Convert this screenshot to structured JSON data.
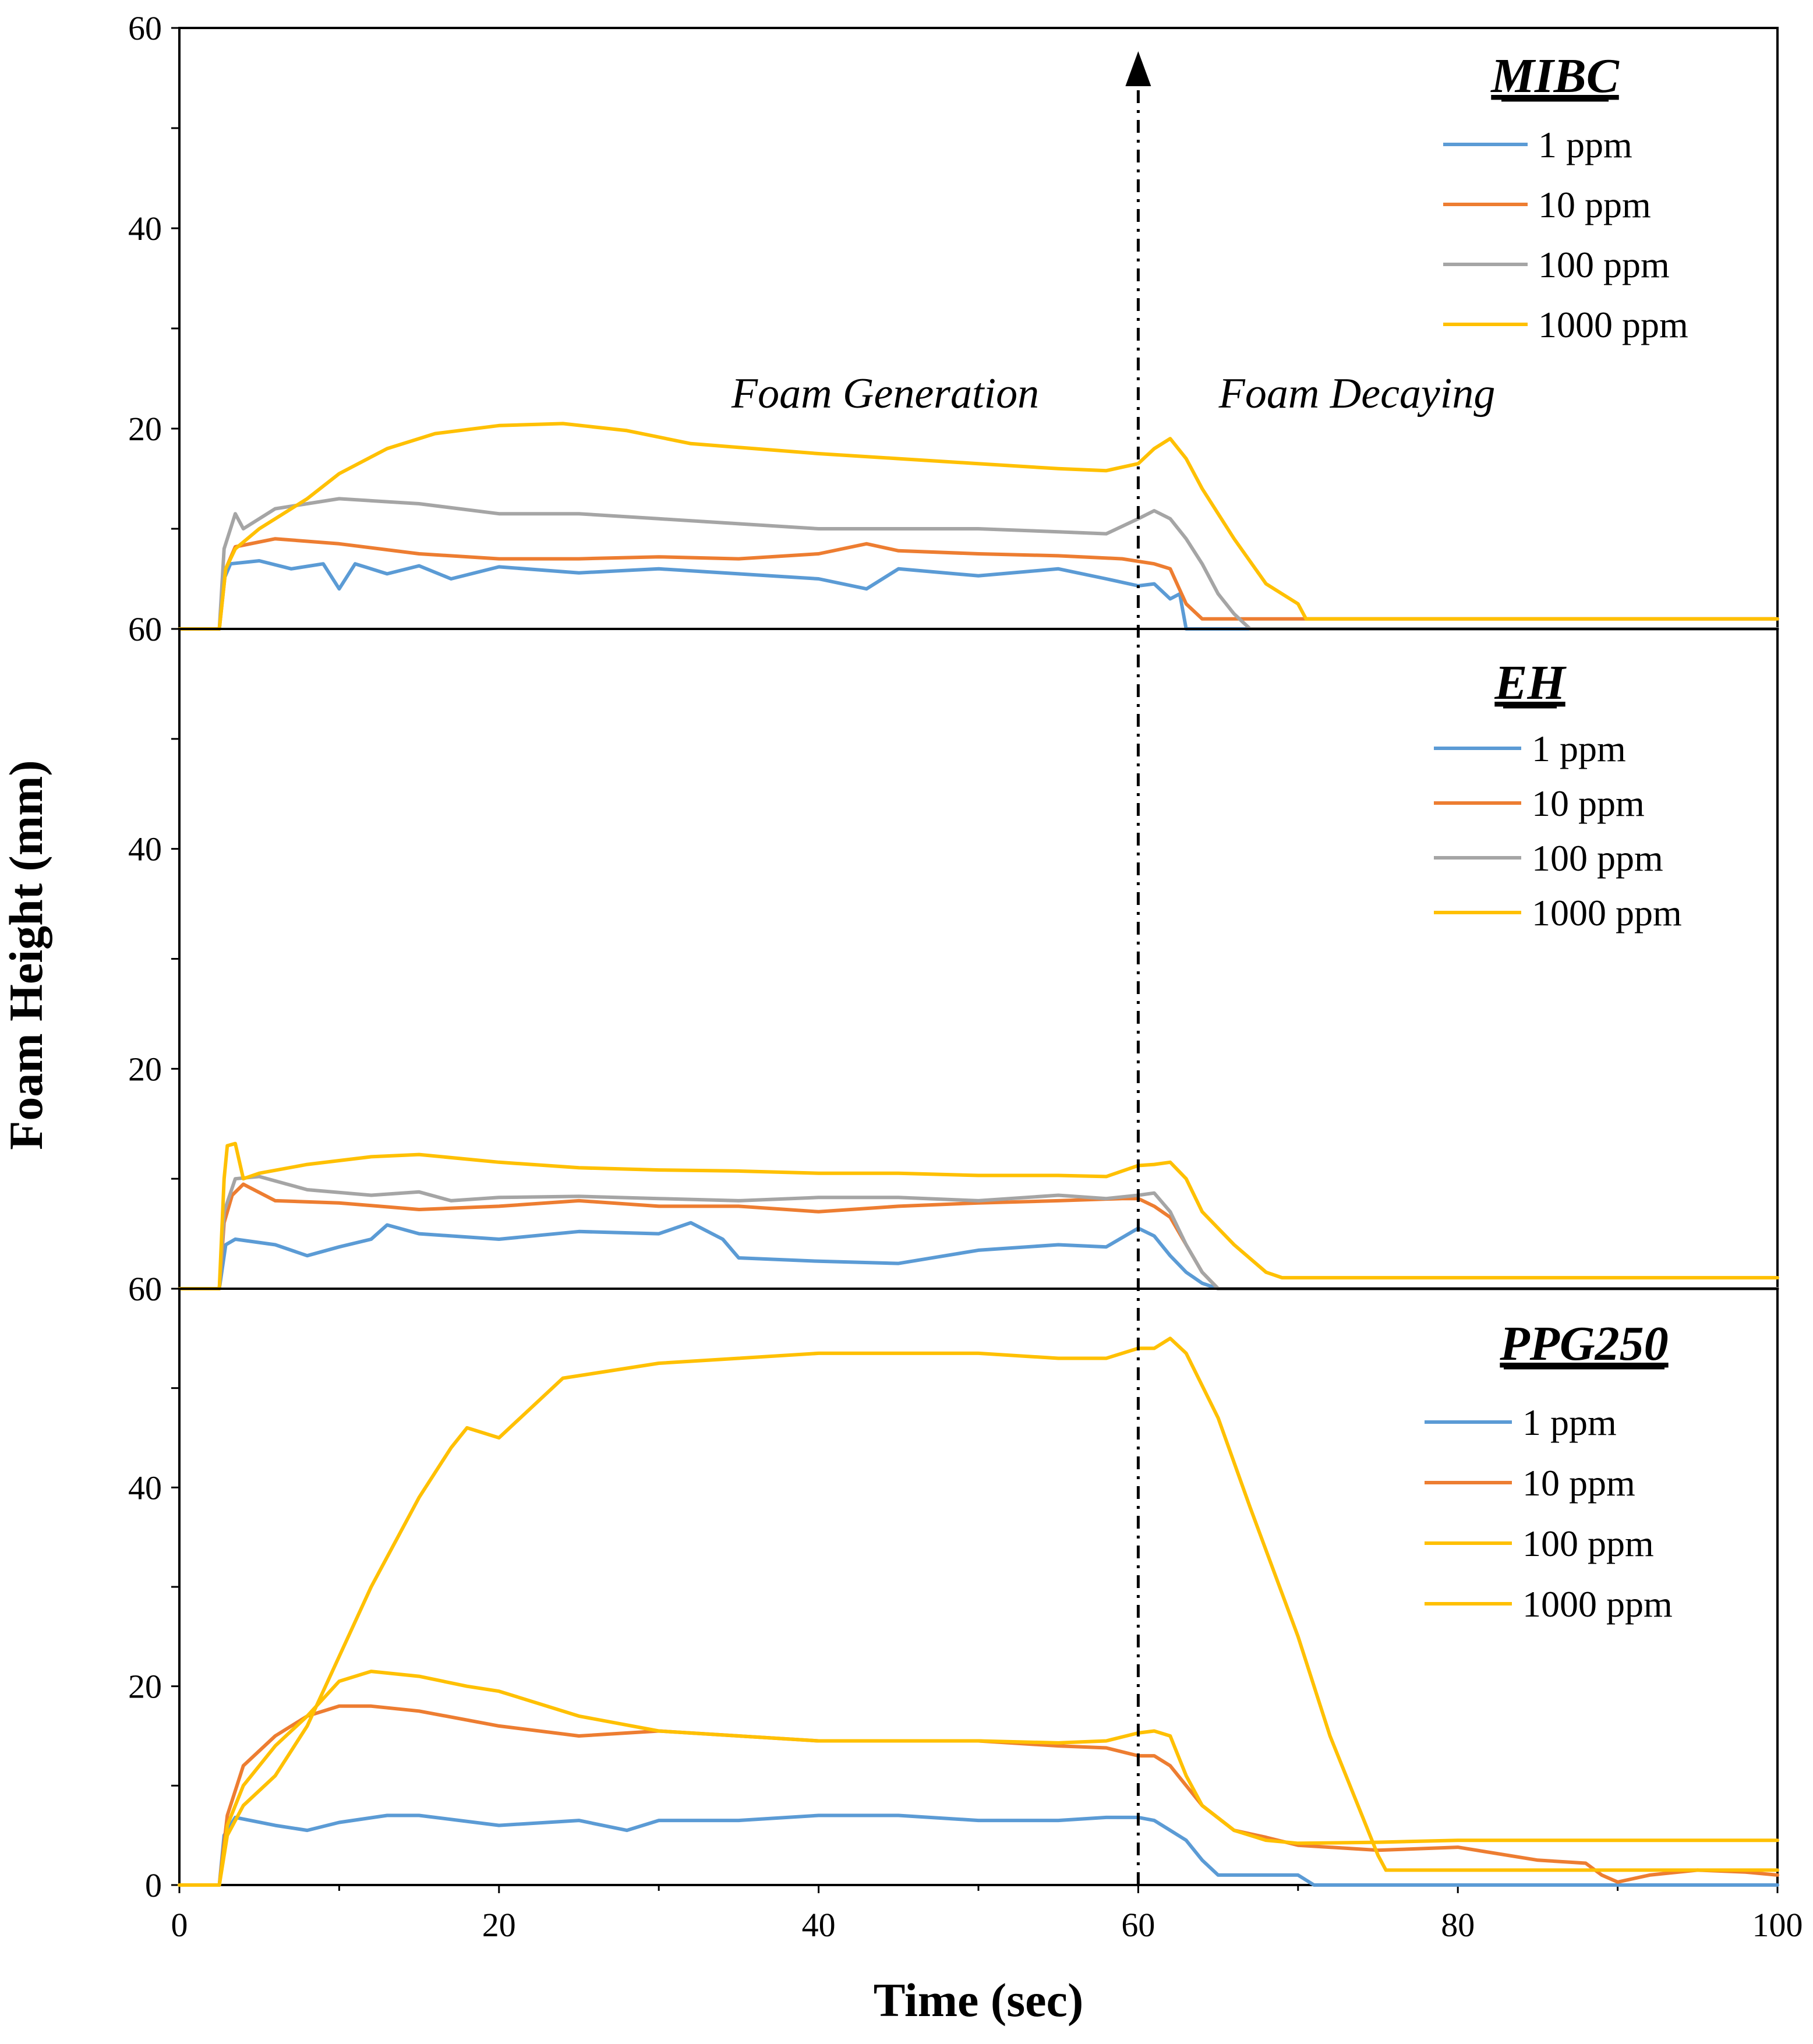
{
  "chart_data": {
    "type": "line",
    "ylabel": "Foam Height (mm)",
    "xlabel": "Time (sec)",
    "xlim": [
      0,
      100
    ],
    "x_ticks": [
      "0",
      "20",
      "40",
      "60",
      "80",
      "100"
    ],
    "y_ticks": [
      "0",
      "20",
      "40",
      "60"
    ],
    "ylim": [
      0,
      60
    ],
    "annotations": {
      "generation": "Foam Generation",
      "decaying": "Foam Decaying",
      "arrow_x": 60
    },
    "panels": [
      {
        "title": "MIBC",
        "legend": [
          "1 ppm",
          "10 ppm",
          "100 ppm",
          "1000 ppm"
        ],
        "series": [
          {
            "name": "1 ppm",
            "color": "#5B9BD5",
            "x": [
              0,
              2.5,
              2.8,
              3.2,
              5,
              7,
              9,
              10,
              11,
              13,
              15,
              17,
              20,
              25,
              30,
              35,
              40,
              43,
              45,
              50,
              55,
              58,
              60,
              61,
              62,
              62.6,
              63,
              100
            ],
            "y": [
              0,
              0,
              5,
              6.5,
              6.8,
              6,
              6.5,
              4,
              6.5,
              5.5,
              6.3,
              5,
              6.2,
              5.6,
              6,
              5.5,
              5,
              4,
              6,
              5.3,
              6,
              5,
              4.3,
              4.5,
              3,
              3.5,
              0,
              0
            ]
          },
          {
            "name": "10 ppm",
            "color": "#ED7D31",
            "x": [
              0,
              2.5,
              2.9,
              3.5,
              6,
              10,
              15,
              20,
              25,
              30,
              35,
              40,
              43,
              45,
              50,
              55,
              59,
              61,
              62,
              63,
              64,
              100
            ],
            "y": [
              0,
              0,
              6,
              8.2,
              9,
              8.5,
              7.5,
              7,
              7,
              7.2,
              7,
              7.5,
              8.5,
              7.8,
              7.5,
              7.3,
              7,
              6.5,
              6,
              2.5,
              1,
              1
            ]
          },
          {
            "name": "100 ppm",
            "color": "#A5A5A5",
            "x": [
              0,
              2.5,
              2.8,
              3.2,
              3.5,
              4,
              6,
              8,
              10,
              15,
              20,
              25,
              30,
              35,
              40,
              45,
              50,
              55,
              58,
              60,
              61,
              62,
              63,
              64,
              65,
              66,
              67,
              100
            ],
            "y": [
              0,
              0,
              8,
              10,
              11.5,
              10,
              12,
              12.5,
              13,
              12.5,
              11.5,
              11.5,
              11,
              10.5,
              10,
              10,
              10,
              9.7,
              9.5,
              11,
              11.8,
              11,
              9,
              6.5,
              3.5,
              1.5,
              0,
              0
            ]
          },
          {
            "name": "1000 ppm",
            "color": "#FFC000",
            "x": [
              0,
              2.5,
              2.9,
              3.5,
              5,
              8,
              10,
              13,
              16,
              20,
              24,
              28,
              32,
              36,
              40,
              45,
              50,
              55,
              58,
              60,
              61,
              62,
              63,
              64,
              66,
              68,
              70,
              70.5,
              100
            ],
            "y": [
              0,
              0,
              6,
              8,
              10,
              13,
              15.5,
              18,
              19.5,
              20.3,
              20.5,
              19.8,
              18.5,
              18,
              17.5,
              17,
              16.5,
              16,
              15.8,
              16.5,
              18,
              19,
              17,
              14,
              9,
              4.5,
              2.5,
              1,
              1
            ]
          }
        ]
      },
      {
        "title": "EH",
        "legend": [
          "1 ppm",
          "10 ppm",
          "100 ppm",
          "1000 ppm"
        ],
        "series": [
          {
            "name": "1 ppm",
            "color": "#5B9BD5",
            "x": [
              0,
              2.5,
              2.9,
              3.5,
              6,
              8,
              10,
              12,
              13,
              15,
              20,
              25,
              30,
              32,
              34,
              35,
              40,
              45,
              50,
              55,
              58,
              60,
              61,
              62,
              63,
              64,
              65,
              100
            ],
            "y": [
              0,
              0,
              4,
              4.5,
              4,
              3,
              3.8,
              4.5,
              5.8,
              5,
              4.5,
              5.2,
              5,
              6,
              4.5,
              2.8,
              2.5,
              2.3,
              3.5,
              4,
              3.8,
              5.5,
              4.8,
              3,
              1.5,
              0.5,
              0,
              0
            ]
          },
          {
            "name": "10 ppm",
            "color": "#ED7D31",
            "x": [
              0,
              2.5,
              2.8,
              3.3,
              4,
              6,
              10,
              15,
              20,
              25,
              30,
              35,
              40,
              45,
              50,
              55,
              59,
              60,
              61,
              62,
              63,
              64,
              65,
              100
            ],
            "y": [
              0,
              0,
              6,
              8.5,
              9.5,
              8,
              7.8,
              7.2,
              7.5,
              8,
              7.5,
              7.5,
              7,
              7.5,
              7.8,
              8,
              8.2,
              8.2,
              7.5,
              6.5,
              4,
              1.5,
              0,
              0
            ]
          },
          {
            "name": "100 ppm",
            "color": "#A5A5A5",
            "x": [
              0,
              2.5,
              2.8,
              3.5,
              5,
              8,
              12,
              15,
              17,
              20,
              25,
              30,
              35,
              40,
              45,
              50,
              55,
              58,
              60,
              61,
              62,
              63,
              64,
              65,
              100
            ],
            "y": [
              0,
              0,
              7,
              10,
              10.2,
              9,
              8.5,
              8.8,
              8,
              8.3,
              8.4,
              8.2,
              8,
              8.3,
              8.3,
              8,
              8.5,
              8.2,
              8.5,
              8.7,
              7,
              4,
              1.5,
              0,
              0
            ]
          },
          {
            "name": "1000 ppm",
            "color": "#FFC000",
            "x": [
              0,
              2.5,
              2.8,
              3.0,
              3.5,
              4,
              5,
              8,
              12,
              15,
              20,
              25,
              30,
              35,
              40,
              45,
              50,
              55,
              58,
              60,
              61,
              62,
              63,
              64,
              66,
              68,
              69,
              100
            ],
            "y": [
              0,
              0,
              10,
              13,
              13.2,
              10,
              10.5,
              11.3,
              12,
              12.2,
              11.5,
              11,
              10.8,
              10.7,
              10.5,
              10.5,
              10.3,
              10.3,
              10.2,
              11.2,
              11.3,
              11.5,
              10,
              7,
              4,
              1.5,
              1,
              1
            ]
          }
        ]
      },
      {
        "title": "PPG250",
        "legend": [
          "1 ppm",
          "10 ppm",
          "100 ppm",
          "1000 ppm"
        ],
        "series": [
          {
            "name": "1 ppm",
            "color": "#5B9BD5",
            "x": [
              0,
              2.5,
              2.8,
              3.5,
              6,
              8,
              10,
              13,
              15,
              20,
              25,
              28,
              30,
              35,
              40,
              45,
              50,
              55,
              58,
              60,
              61,
              62,
              63,
              64,
              65,
              70,
              71,
              100
            ],
            "y": [
              0,
              0,
              5,
              6.8,
              6,
              5.5,
              6.3,
              7,
              7,
              6,
              6.5,
              5.5,
              6.5,
              6.5,
              7,
              7,
              6.5,
              6.5,
              6.8,
              6.8,
              6.5,
              5.5,
              4.5,
              2.5,
              1,
              1,
              0,
              0
            ]
          },
          {
            "name": "10 ppm",
            "color": "#ED7D31",
            "x": [
              0,
              2.5,
              3,
              4,
              6,
              8,
              10,
              12,
              15,
              20,
              25,
              30,
              35,
              40,
              45,
              50,
              55,
              58,
              60,
              61,
              62,
              63,
              64,
              66,
              68,
              70,
              75,
              80,
              85,
              87,
              88,
              89,
              90,
              92,
              95,
              98,
              100
            ],
            "y": [
              0,
              0,
              7,
              12,
              15,
              17,
              18,
              18,
              17.5,
              16,
              15,
              15.5,
              15,
              14.5,
              14.5,
              14.5,
              14,
              13.8,
              13,
              13,
              12,
              10,
              8,
              5.5,
              4.8,
              4,
              3.5,
              3.8,
              2.5,
              2.3,
              2.2,
              1,
              0.3,
              1,
              1.5,
              1.3,
              1
            ]
          },
          {
            "name": "100 ppm",
            "color": "#FFC000",
            "x": [
              0,
              2.5,
              3,
              4,
              6,
              8,
              10,
              12,
              15,
              18,
              20,
              25,
              30,
              35,
              40,
              45,
              50,
              55,
              58,
              60,
              61,
              62,
              63,
              64,
              66,
              68,
              70,
              75,
              80,
              85,
              90,
              95,
              100
            ],
            "y": [
              0,
              0,
              6,
              10,
              14,
              17,
              20.5,
              21.5,
              21,
              20,
              19.5,
              17,
              15.5,
              15,
              14.5,
              14.5,
              14.5,
              14.3,
              14.5,
              15.3,
              15.5,
              15,
              11,
              8,
              5.5,
              4.5,
              4.2,
              4.3,
              4.5,
              4.5,
              4.5,
              4.5,
              4.5
            ]
          },
          {
            "name": "1000 ppm",
            "color": "#FFC000",
            "x": [
              0,
              2.5,
              3,
              4,
              6,
              8,
              10,
              12,
              15,
              17,
              18,
              20,
              22,
              24,
              26,
              30,
              35,
              40,
              45,
              50,
              55,
              58,
              60,
              61,
              62,
              63,
              65,
              67,
              70,
              72,
              74,
              75,
              75.5,
              80,
              90,
              100
            ],
            "y": [
              0,
              0,
              5,
              8,
              11,
              16,
              23,
              30,
              39,
              44,
              46,
              45,
              48,
              51,
              51.5,
              52.5,
              53,
              53.5,
              53.5,
              53.5,
              53,
              53,
              54,
              54,
              55,
              53.5,
              47,
              38,
              25,
              15,
              7,
              3,
              1.5,
              1.5,
              1.5,
              1.5
            ]
          }
        ]
      }
    ]
  }
}
